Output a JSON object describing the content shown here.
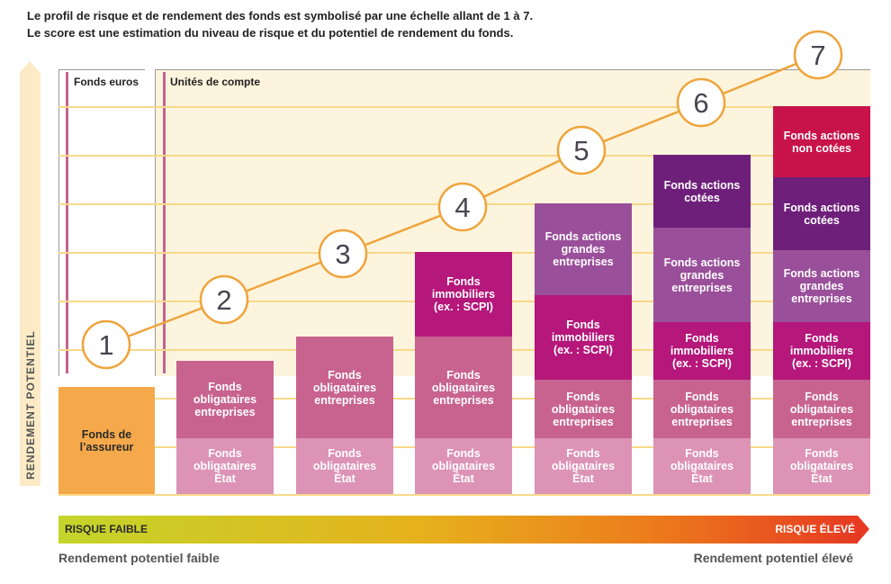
{
  "intro": {
    "line1": "Le profil de risque et de rendement des fonds est symbolisé par une échelle allant de 1 à 7.",
    "line2": "Le score est une estimation du niveau de risque et du potentiel de rendement du fonds."
  },
  "axis": {
    "vertical_label": "RENDEMENT POTENTIEL",
    "risk_low": "RISQUE FAIBLE",
    "risk_high": "RISQUE ÉLEVÉ",
    "return_low": "Rendement potentiel faible",
    "return_high": "Rendement potentiel élevé"
  },
  "sections": {
    "euros": "Fonds euros",
    "uc": "Unités de compte"
  },
  "scores": [
    "1",
    "2",
    "3",
    "4",
    "5",
    "6",
    "7"
  ],
  "colors": {
    "assureur": "#f6a94a",
    "etat": "#dc93b5",
    "entreprises": "#c8638f",
    "immobiliers": "#b5177a",
    "grandes": "#9a4f9a",
    "cotees": "#6e1f7a",
    "non_cotees": "#c8134a",
    "line": "#eea43c"
  },
  "labels": {
    "assureur": "Fonds de\nl’assureur",
    "etat": "Fonds\nobligataires\nÉtat",
    "entreprises": "Fonds\nobligataires\nentreprises",
    "immobiliers": "Fonds\nimmobiliers\n(ex. : SCPI)",
    "grandes": "Fonds actions\ngrandes\nentreprises",
    "cotees": "Fonds actions\ncotées",
    "non_cotees": "Fonds actions\nnon cotées"
  },
  "columns": [
    [
      "assureur"
    ],
    [
      "etat",
      "entreprises"
    ],
    [
      "etat",
      "entreprises"
    ],
    [
      "etat",
      "entreprises",
      "immobiliers"
    ],
    [
      "etat",
      "entreprises",
      "immobiliers",
      "grandes"
    ],
    [
      "etat",
      "entreprises",
      "immobiliers",
      "grandes",
      "cotees"
    ],
    [
      "etat",
      "entreprises",
      "immobiliers",
      "grandes",
      "cotees",
      "non_cotees"
    ]
  ]
}
